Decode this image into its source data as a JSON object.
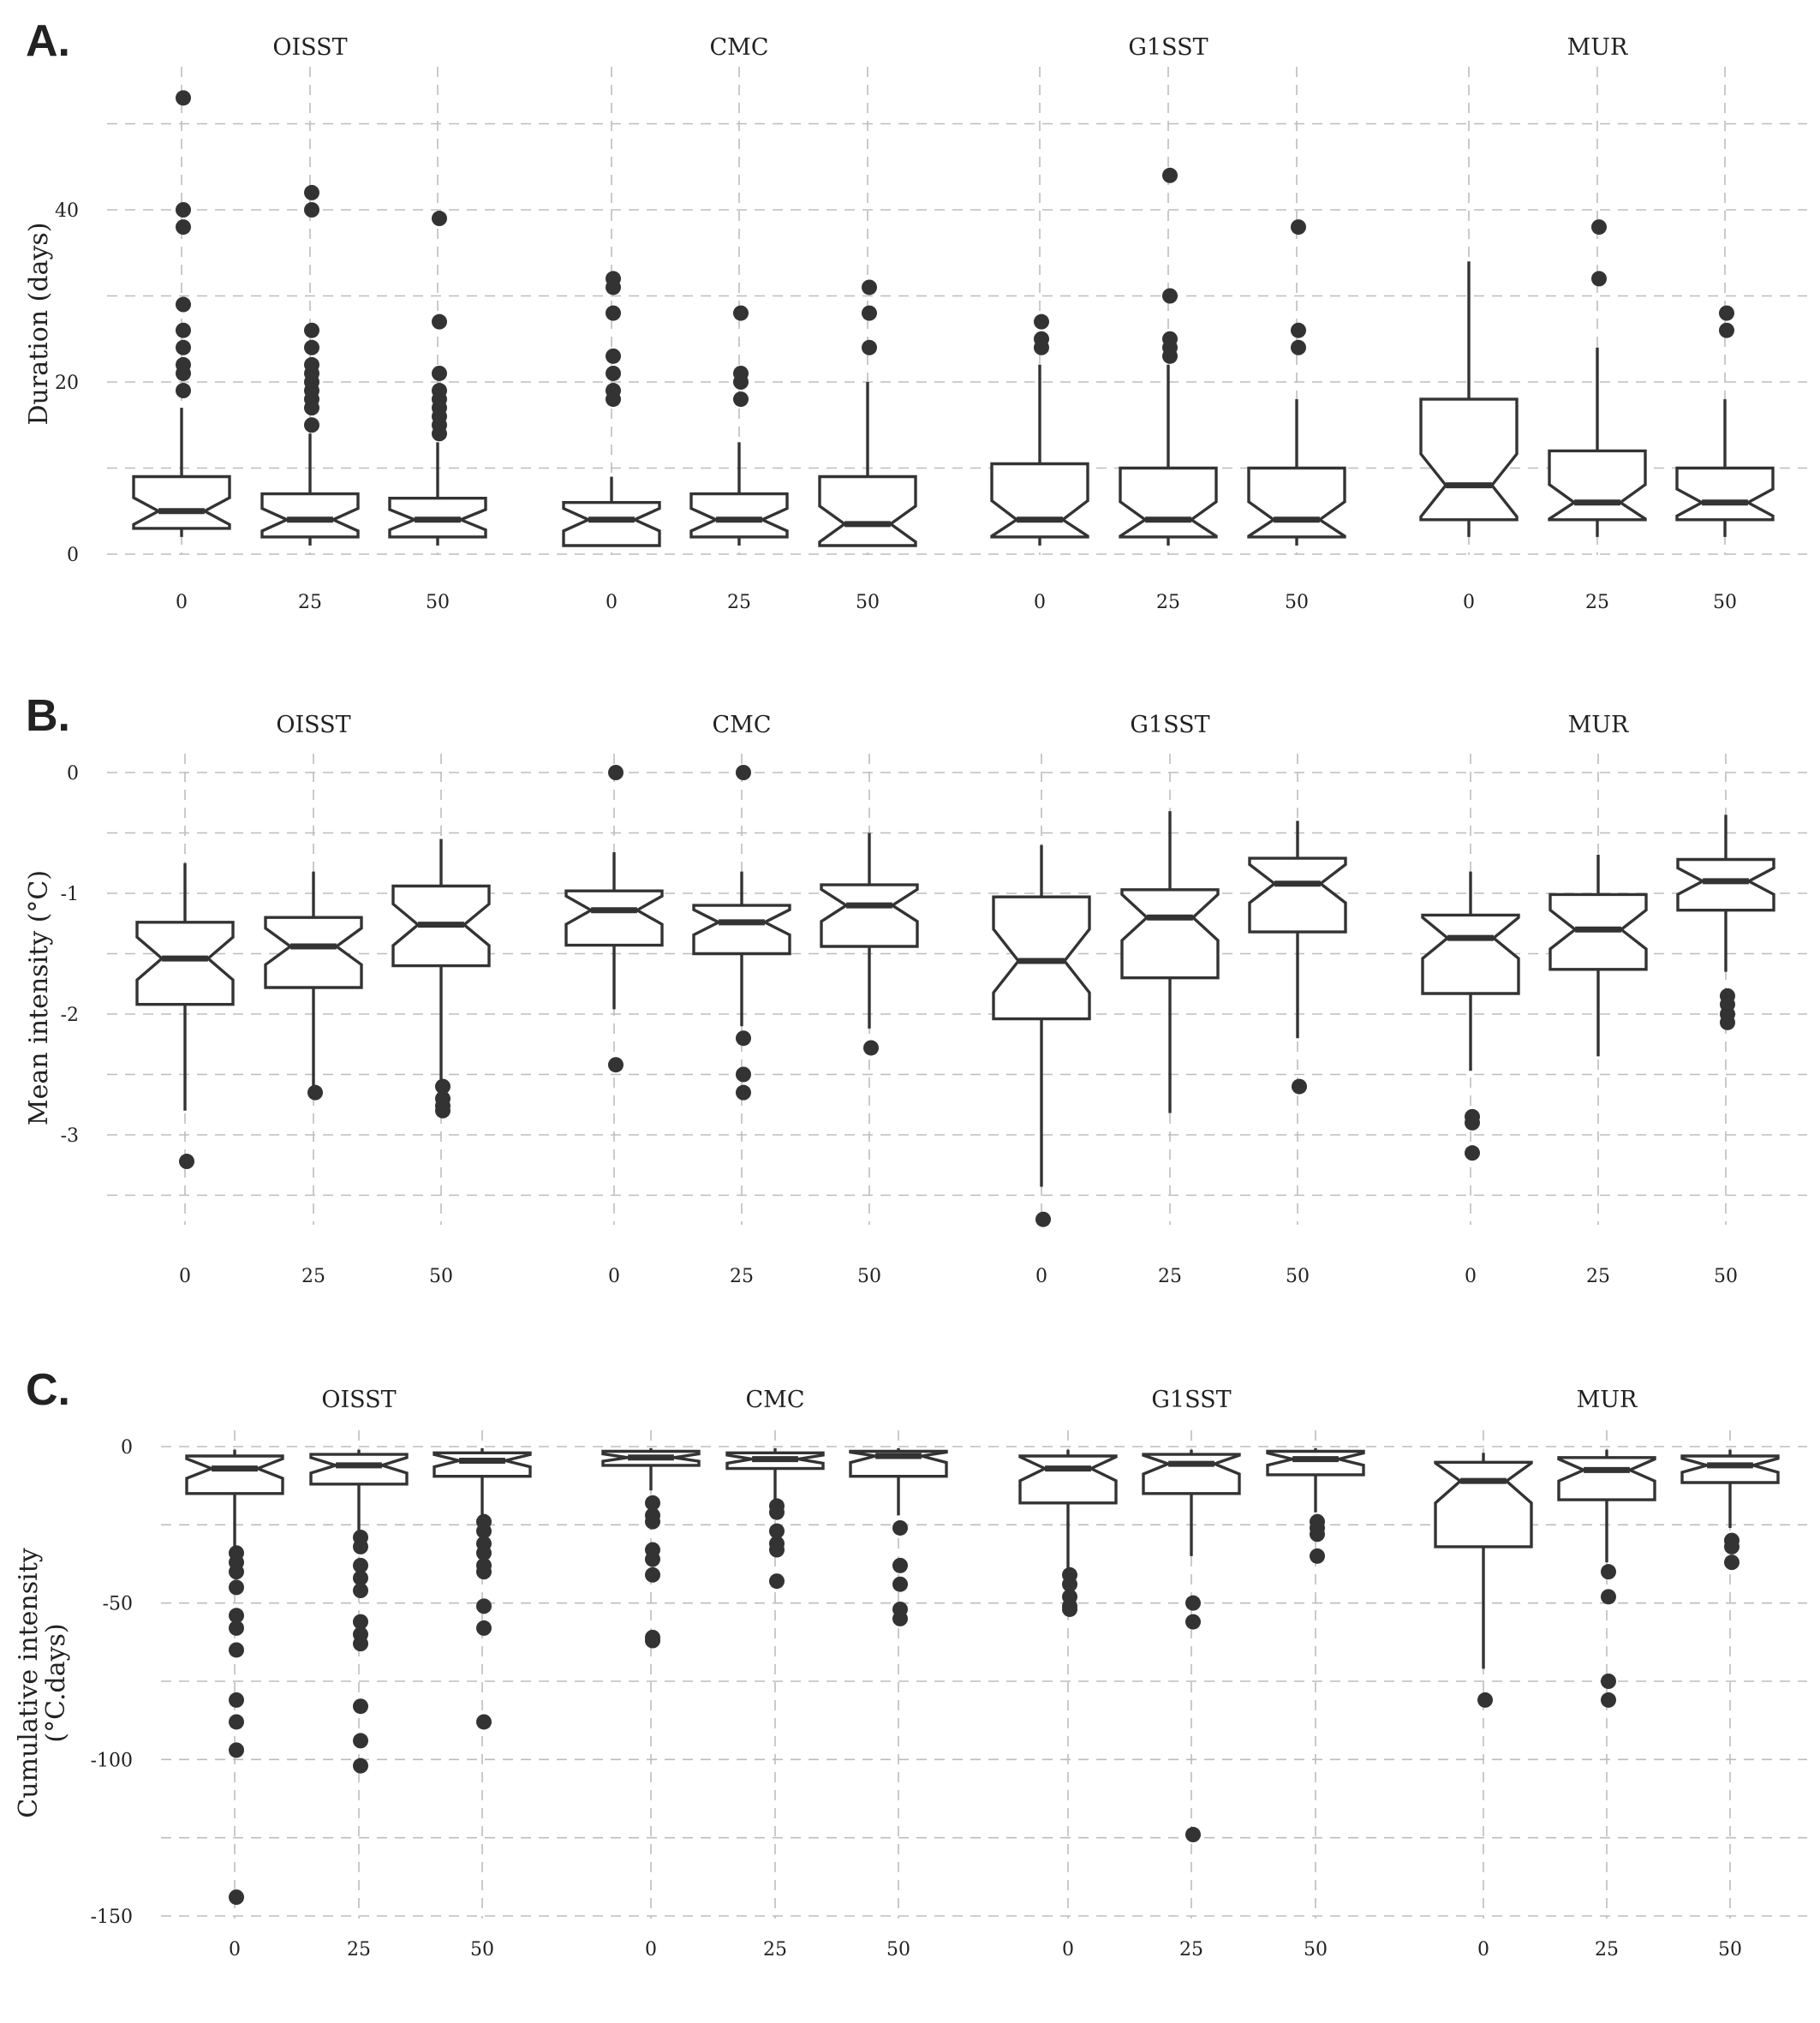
{
  "chart_data": [
    {
      "type": "boxplot",
      "panel_label": "A.",
      "ylabel": "Duration (days)",
      "ylabel_lines": [
        "Duration (days)"
      ],
      "ylim": [
        0,
        50
      ],
      "yticks": [
        0,
        20,
        40
      ],
      "grid": true,
      "facets": [
        {
          "name": "OISST",
          "groups": [
            {
              "x": "0",
              "low": 2,
              "q1": 3,
              "median": 5,
              "q3": 9,
              "high": 17,
              "outliers": [
                19,
                21,
                22,
                24,
                26,
                29,
                38,
                40,
                53
              ]
            },
            {
              "x": "25",
              "low": 1,
              "q1": 2,
              "median": 4,
              "q3": 7,
              "high": 14,
              "outliers": [
                15,
                17,
                18,
                19,
                20,
                21,
                22,
                24,
                26,
                40,
                42
              ]
            },
            {
              "x": "50",
              "low": 1,
              "q1": 2,
              "median": 4,
              "q3": 6.5,
              "high": 13,
              "outliers": [
                14,
                15,
                16,
                17,
                18,
                19,
                21,
                27,
                39
              ]
            }
          ]
        },
        {
          "name": "CMC",
          "groups": [
            {
              "x": "0",
              "low": 1,
              "q1": 1,
              "median": 4,
              "q3": 6,
              "high": 9,
              "outliers": [
                18,
                19,
                21,
                23,
                28,
                31,
                32
              ]
            },
            {
              "x": "25",
              "low": 1,
              "q1": 2,
              "median": 4,
              "q3": 7,
              "high": 13,
              "outliers": [
                18,
                20,
                21,
                28
              ]
            },
            {
              "x": "50",
              "low": 1,
              "q1": 1,
              "median": 3.5,
              "q3": 9,
              "high": 20,
              "outliers": [
                24,
                28,
                31
              ]
            }
          ]
        },
        {
          "name": "G1SST",
          "groups": [
            {
              "x": "0",
              "low": 1,
              "q1": 2,
              "median": 4,
              "q3": 10.5,
              "high": 22,
              "outliers": [
                24,
                25,
                27
              ]
            },
            {
              "x": "25",
              "low": 1,
              "q1": 2,
              "median": 4,
              "q3": 10,
              "high": 22,
              "outliers": [
                23,
                24,
                25,
                30,
                44
              ]
            },
            {
              "x": "50",
              "low": 1,
              "q1": 2,
              "median": 4,
              "q3": 10,
              "high": 18,
              "outliers": [
                24,
                26,
                38
              ]
            }
          ]
        },
        {
          "name": "MUR",
          "groups": [
            {
              "x": "0",
              "low": 2,
              "q1": 4,
              "median": 8,
              "q3": 18,
              "high": 34,
              "outliers": []
            },
            {
              "x": "25",
              "low": 2,
              "q1": 4,
              "median": 6,
              "q3": 12,
              "high": 24,
              "outliers": [
                32,
                38
              ]
            },
            {
              "x": "50",
              "low": 2,
              "q1": 4,
              "median": 6,
              "q3": 10,
              "high": 18,
              "outliers": [
                26,
                28
              ]
            }
          ]
        }
      ]
    },
    {
      "type": "boxplot",
      "panel_label": "B.",
      "ylabel": "Mean intensity (°C)",
      "ylabel_lines": [
        "Mean intensity (°C)"
      ],
      "ylim": [
        -3.7,
        0
      ],
      "yticks": [
        0,
        -1,
        -2,
        -3
      ],
      "grid": true,
      "facets": [
        {
          "name": "OISST",
          "groups": [
            {
              "x": "0",
              "low": -2.8,
              "q1": -1.92,
              "median": -1.54,
              "q3": -1.24,
              "high": -0.75,
              "outliers": [
                -3.22
              ]
            },
            {
              "x": "25",
              "low": -2.6,
              "q1": -1.78,
              "median": -1.44,
              "q3": -1.2,
              "high": -0.82,
              "outliers": [
                -2.65
              ]
            },
            {
              "x": "50",
              "low": -2.55,
              "q1": -1.6,
              "median": -1.26,
              "q3": -0.94,
              "high": -0.55,
              "outliers": [
                -2.6,
                -2.7,
                -2.76,
                -2.8
              ]
            }
          ]
        },
        {
          "name": "CMC",
          "groups": [
            {
              "x": "0",
              "low": -1.96,
              "q1": -1.43,
              "median": -1.14,
              "q3": -0.98,
              "high": -0.66,
              "outliers": [
                -2.42,
                0
              ]
            },
            {
              "x": "25",
              "low": -2.1,
              "q1": -1.5,
              "median": -1.24,
              "q3": -1.1,
              "high": -0.82,
              "outliers": [
                -2.2,
                -2.5,
                -2.65,
                0
              ]
            },
            {
              "x": "50",
              "low": -2.12,
              "q1": -1.44,
              "median": -1.1,
              "q3": -0.93,
              "high": -0.5,
              "outliers": [
                -2.28
              ]
            }
          ]
        },
        {
          "name": "G1SST",
          "groups": [
            {
              "x": "0",
              "low": -3.43,
              "q1": -2.04,
              "median": -1.56,
              "q3": -1.03,
              "high": -0.6,
              "outliers": [
                -3.7
              ]
            },
            {
              "x": "25",
              "low": -2.82,
              "q1": -1.7,
              "median": -1.2,
              "q3": -0.97,
              "high": -0.32,
              "outliers": []
            },
            {
              "x": "50",
              "low": -2.2,
              "q1": -1.32,
              "median": -0.92,
              "q3": -0.71,
              "high": -0.4,
              "outliers": [
                -2.6
              ]
            }
          ]
        },
        {
          "name": "MUR",
          "groups": [
            {
              "x": "0",
              "low": -2.47,
              "q1": -1.83,
              "median": -1.37,
              "q3": -1.18,
              "high": -0.82,
              "outliers": [
                -2.85,
                -2.9,
                -3.15
              ]
            },
            {
              "x": "25",
              "low": -2.35,
              "q1": -1.63,
              "median": -1.3,
              "q3": -1.01,
              "high": -0.68,
              "outliers": []
            },
            {
              "x": "50",
              "low": -1.65,
              "q1": -1.14,
              "median": -0.9,
              "q3": -0.72,
              "high": -0.35,
              "outliers": [
                -1.85,
                -1.92,
                -2.0,
                -2.07
              ]
            }
          ]
        }
      ]
    },
    {
      "type": "boxplot",
      "panel_label": "C.",
      "ylabel": "Cumulative intensity (°C.days)",
      "ylabel_lines": [
        "Cumulative intensity",
        "(°C.days)"
      ],
      "ylim": [
        -150,
        0
      ],
      "yticks": [
        0,
        -50,
        -100,
        -150
      ],
      "grid": true,
      "facets": [
        {
          "name": "OISST",
          "groups": [
            {
              "x": "0",
              "low": -33,
              "q1": -15,
              "median": -7,
              "q3": -3,
              "high": -1,
              "outliers": [
                -34,
                -37,
                -40,
                -45,
                -54,
                -58,
                -65,
                -81,
                -88,
                -97,
                -144
              ]
            },
            {
              "x": "25",
              "low": -27,
              "q1": -12,
              "median": -6,
              "q3": -2.5,
              "high": -1,
              "outliers": [
                -29,
                -32,
                -38,
                -42,
                -46,
                -56,
                -60,
                -63,
                -83,
                -94,
                -102
              ]
            },
            {
              "x": "50",
              "low": -22,
              "q1": -9.5,
              "median": -4.5,
              "q3": -2,
              "high": -0.5,
              "outliers": [
                -24,
                -27,
                -31,
                -34,
                -38,
                -40,
                -51,
                -58,
                -88
              ]
            }
          ]
        },
        {
          "name": "CMC",
          "groups": [
            {
              "x": "0",
              "low": -14,
              "q1": -6,
              "median": -3.5,
              "q3": -1.5,
              "high": -0.5,
              "outliers": [
                -18,
                -22,
                -24,
                -33,
                -36,
                -41,
                -61,
                -62
              ]
            },
            {
              "x": "25",
              "low": -17,
              "q1": -7,
              "median": -4,
              "q3": -2,
              "high": -0.5,
              "outliers": [
                -19,
                -21,
                -27,
                -31,
                -33,
                -43
              ]
            },
            {
              "x": "50",
              "low": -22,
              "q1": -9.5,
              "median": -3,
              "q3": -1.5,
              "high": -0.5,
              "outliers": [
                -26,
                -38,
                -44,
                -52,
                -55
              ]
            }
          ]
        },
        {
          "name": "G1SST",
          "groups": [
            {
              "x": "0",
              "low": -39,
              "q1": -18,
              "median": -7,
              "q3": -3,
              "high": -1,
              "outliers": [
                -41,
                -44,
                -48,
                -51,
                -52
              ]
            },
            {
              "x": "25",
              "low": -35,
              "q1": -15,
              "median": -5.5,
              "q3": -2.5,
              "high": -1,
              "outliers": [
                -50,
                -56,
                -124
              ]
            },
            {
              "x": "50",
              "low": -21,
              "q1": -9,
              "median": -4,
              "q3": -1.5,
              "high": -0.5,
              "outliers": [
                -24,
                -26,
                -28,
                -35
              ]
            }
          ]
        },
        {
          "name": "MUR",
          "groups": [
            {
              "x": "0",
              "low": -71,
              "q1": -32,
              "median": -11,
              "q3": -5,
              "high": -2,
              "outliers": [
                -81
              ]
            },
            {
              "x": "25",
              "low": -37,
              "q1": -17,
              "median": -7.5,
              "q3": -3.5,
              "high": -1,
              "outliers": [
                -40,
                -48,
                -75,
                -81
              ]
            },
            {
              "x": "50",
              "low": -26,
              "q1": -11.5,
              "median": -6,
              "q3": -3,
              "high": -1,
              "outliers": [
                -30,
                -32,
                -37
              ]
            }
          ]
        }
      ]
    }
  ]
}
